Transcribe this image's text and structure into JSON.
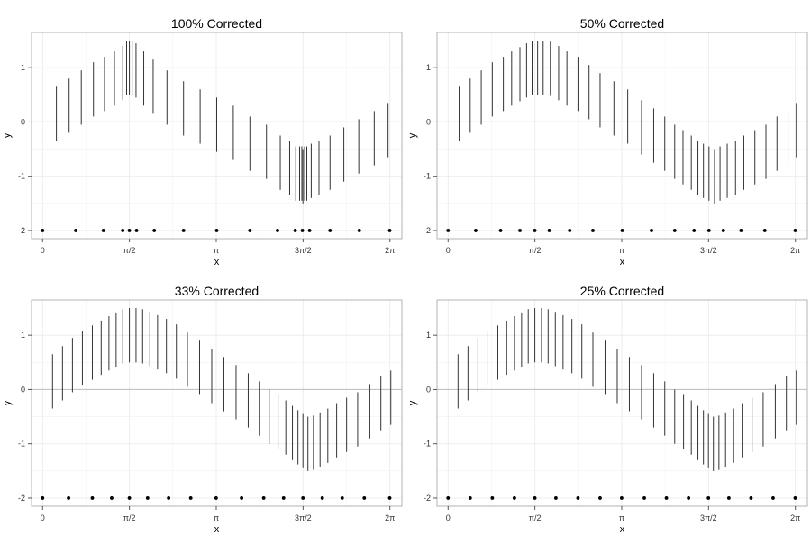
{
  "chart_data": [
    {
      "type": "segment",
      "title": "100% Corrected",
      "xlabel": "x",
      "ylabel": "y",
      "xlim": [
        -0.2,
        6.5
      ],
      "ylim": [
        -2.15,
        1.65
      ],
      "x_ticks": [
        "0",
        "π/2",
        "π",
        "3π/2",
        "2π"
      ],
      "y_ticks": [
        "-2",
        "-1",
        "0",
        "1"
      ],
      "x_tick_values": [
        0,
        1.5708,
        3.1416,
        4.7124,
        6.2832
      ],
      "y_tick_values": [
        -2,
        -1,
        0,
        1
      ],
      "baseline": -2,
      "x": [
        0.25,
        0.48,
        0.7,
        0.92,
        1.12,
        1.3,
        1.45,
        1.52,
        1.57,
        1.62,
        1.69,
        1.83,
        2.0,
        2.25,
        2.55,
        2.85,
        3.15,
        3.45,
        3.75,
        4.05,
        4.3,
        4.47,
        4.58,
        4.65,
        4.69,
        4.71,
        4.74,
        4.78,
        4.86,
        5.0,
        5.2,
        5.45,
        5.72,
        6.0,
        6.25
      ],
      "lower": [
        -0.35,
        -0.2,
        -0.05,
        0.1,
        0.2,
        0.3,
        0.4,
        0.5,
        0.5,
        0.5,
        0.45,
        0.3,
        0.15,
        -0.05,
        -0.25,
        -0.4,
        -0.55,
        -0.7,
        -0.9,
        -1.05,
        -1.25,
        -1.35,
        -1.45,
        -1.45,
        -1.45,
        -1.5,
        -1.45,
        -1.45,
        -1.4,
        -1.35,
        -1.25,
        -1.1,
        -0.95,
        -0.8,
        -0.65
      ],
      "upper": [
        0.65,
        0.8,
        0.95,
        1.1,
        1.2,
        1.3,
        1.4,
        1.5,
        1.5,
        1.5,
        1.45,
        1.3,
        1.15,
        0.95,
        0.75,
        0.6,
        0.45,
        0.3,
        0.1,
        -0.05,
        -0.25,
        -0.35,
        -0.45,
        -0.45,
        -0.45,
        -0.5,
        -0.45,
        -0.45,
        -0.4,
        -0.35,
        -0.25,
        -0.1,
        0.05,
        0.2,
        0.35
      ],
      "rug_x": [
        0.0,
        0.6,
        1.1,
        1.45,
        1.57,
        1.7,
        2.02,
        2.55,
        3.15,
        3.75,
        4.25,
        4.57,
        4.7,
        4.83,
        5.2,
        5.73,
        6.28
      ]
    },
    {
      "type": "segment",
      "title": "50% Corrected",
      "xlabel": "x",
      "ylabel": "y",
      "xlim": [
        -0.2,
        6.5
      ],
      "ylim": [
        -2.15,
        1.65
      ],
      "x_ticks": [
        "0",
        "π/2",
        "π",
        "3π/2",
        "2π"
      ],
      "y_ticks": [
        "-2",
        "-1",
        "0",
        "1"
      ],
      "x_tick_values": [
        0,
        1.5708,
        3.1416,
        4.7124,
        6.2832
      ],
      "y_tick_values": [
        -2,
        -1,
        0,
        1
      ],
      "baseline": -2,
      "x": [
        0.2,
        0.4,
        0.6,
        0.8,
        1.0,
        1.15,
        1.3,
        1.42,
        1.52,
        1.62,
        1.72,
        1.85,
        2.0,
        2.15,
        2.35,
        2.55,
        2.75,
        3.0,
        3.25,
        3.5,
        3.72,
        3.92,
        4.1,
        4.25,
        4.4,
        4.52,
        4.62,
        4.72,
        4.82,
        4.92,
        5.05,
        5.2,
        5.35,
        5.55,
        5.75,
        5.95,
        6.15,
        6.3
      ],
      "lower": [
        -0.35,
        -0.2,
        -0.05,
        0.1,
        0.2,
        0.3,
        0.38,
        0.45,
        0.5,
        0.5,
        0.5,
        0.48,
        0.4,
        0.3,
        0.2,
        0.05,
        -0.1,
        -0.25,
        -0.4,
        -0.6,
        -0.75,
        -0.9,
        -1.05,
        -1.15,
        -1.25,
        -1.35,
        -1.4,
        -1.45,
        -1.5,
        -1.45,
        -1.4,
        -1.35,
        -1.25,
        -1.15,
        -1.05,
        -0.9,
        -0.8,
        -0.65
      ],
      "upper": [
        0.65,
        0.8,
        0.95,
        1.1,
        1.2,
        1.3,
        1.38,
        1.45,
        1.5,
        1.5,
        1.5,
        1.48,
        1.4,
        1.3,
        1.2,
        1.05,
        0.9,
        0.75,
        0.6,
        0.4,
        0.25,
        0.1,
        -0.05,
        -0.15,
        -0.25,
        -0.35,
        -0.4,
        -0.45,
        -0.5,
        -0.45,
        -0.4,
        -0.35,
        -0.25,
        -0.15,
        -0.05,
        0.1,
        0.2,
        0.35
      ],
      "rug_x": [
        0.0,
        0.5,
        0.95,
        1.3,
        1.57,
        1.83,
        2.2,
        2.62,
        3.15,
        3.68,
        4.1,
        4.45,
        4.72,
        4.98,
        5.3,
        5.73,
        6.28
      ]
    },
    {
      "type": "segment",
      "title": "33% Corrected",
      "xlabel": "x",
      "ylabel": "y",
      "xlim": [
        -0.2,
        6.5
      ],
      "ylim": [
        -2.15,
        1.65
      ],
      "x_ticks": [
        "0",
        "π/2",
        "π",
        "3π/2",
        "2π"
      ],
      "y_ticks": [
        "-2",
        "-1",
        "0",
        "1"
      ],
      "x_tick_values": [
        0,
        1.5708,
        3.1416,
        4.7124,
        6.2832
      ],
      "y_tick_values": [
        -2,
        -1,
        0,
        1
      ],
      "baseline": -2,
      "x": [
        0.18,
        0.36,
        0.54,
        0.72,
        0.9,
        1.06,
        1.2,
        1.33,
        1.45,
        1.57,
        1.69,
        1.81,
        1.94,
        2.08,
        2.24,
        2.42,
        2.62,
        2.84,
        3.06,
        3.28,
        3.5,
        3.72,
        3.92,
        4.1,
        4.26,
        4.4,
        4.52,
        4.62,
        4.71,
        4.8,
        4.9,
        5.02,
        5.16,
        5.32,
        5.5,
        5.7,
        5.92,
        6.12,
        6.3
      ],
      "lower": [
        -0.35,
        -0.2,
        -0.05,
        0.08,
        0.18,
        0.27,
        0.35,
        0.42,
        0.48,
        0.5,
        0.5,
        0.48,
        0.43,
        0.37,
        0.3,
        0.2,
        0.05,
        -0.1,
        -0.25,
        -0.4,
        -0.55,
        -0.7,
        -0.85,
        -1.0,
        -1.1,
        -1.2,
        -1.3,
        -1.38,
        -1.45,
        -1.5,
        -1.48,
        -1.42,
        -1.35,
        -1.25,
        -1.15,
        -1.05,
        -0.9,
        -0.75,
        -0.65
      ],
      "upper": [
        0.65,
        0.8,
        0.95,
        1.08,
        1.18,
        1.27,
        1.35,
        1.42,
        1.48,
        1.5,
        1.5,
        1.48,
        1.43,
        1.37,
        1.3,
        1.2,
        1.05,
        0.9,
        0.75,
        0.6,
        0.45,
        0.3,
        0.15,
        0.0,
        -0.1,
        -0.2,
        -0.3,
        -0.38,
        -0.45,
        -0.5,
        -0.48,
        -0.42,
        -0.35,
        -0.25,
        -0.15,
        -0.05,
        0.1,
        0.25,
        0.35
      ],
      "rug_x": [
        0.0,
        0.47,
        0.9,
        1.25,
        1.57,
        1.9,
        2.28,
        2.68,
        3.14,
        3.6,
        4.0,
        4.36,
        4.71,
        5.06,
        5.42,
        5.82,
        6.28
      ]
    },
    {
      "type": "segment",
      "title": "25% Corrected",
      "xlabel": "x",
      "ylabel": "y",
      "xlim": [
        -0.2,
        6.5
      ],
      "ylim": [
        -2.15,
        1.65
      ],
      "x_ticks": [
        "0",
        "π/2",
        "π",
        "3π/2",
        "2π"
      ],
      "y_ticks": [
        "-2",
        "-1",
        "0",
        "1"
      ],
      "x_tick_values": [
        0,
        1.5708,
        3.1416,
        4.7124,
        6.2832
      ],
      "y_tick_values": [
        -2,
        -1,
        0,
        1
      ],
      "baseline": -2,
      "x": [
        0.18,
        0.36,
        0.54,
        0.72,
        0.9,
        1.06,
        1.2,
        1.33,
        1.45,
        1.57,
        1.69,
        1.81,
        1.94,
        2.08,
        2.24,
        2.42,
        2.62,
        2.84,
        3.06,
        3.28,
        3.5,
        3.72,
        3.92,
        4.1,
        4.26,
        4.4,
        4.52,
        4.62,
        4.71,
        4.8,
        4.9,
        5.02,
        5.16,
        5.32,
        5.5,
        5.7,
        5.92,
        6.12,
        6.3
      ],
      "lower": [
        -0.35,
        -0.2,
        -0.05,
        0.08,
        0.18,
        0.27,
        0.35,
        0.42,
        0.48,
        0.5,
        0.5,
        0.48,
        0.43,
        0.37,
        0.3,
        0.2,
        0.05,
        -0.1,
        -0.25,
        -0.4,
        -0.55,
        -0.7,
        -0.85,
        -1.0,
        -1.1,
        -1.2,
        -1.3,
        -1.38,
        -1.45,
        -1.5,
        -1.48,
        -1.42,
        -1.35,
        -1.25,
        -1.15,
        -1.05,
        -0.9,
        -0.75,
        -0.65
      ],
      "upper": [
        0.65,
        0.8,
        0.95,
        1.08,
        1.18,
        1.27,
        1.35,
        1.42,
        1.48,
        1.5,
        1.5,
        1.48,
        1.43,
        1.37,
        1.3,
        1.2,
        1.05,
        0.9,
        0.75,
        0.6,
        0.45,
        0.3,
        0.15,
        0.0,
        -0.1,
        -0.2,
        -0.3,
        -0.38,
        -0.45,
        -0.5,
        -0.48,
        -0.42,
        -0.35,
        -0.25,
        -0.15,
        -0.05,
        0.1,
        0.25,
        0.35
      ],
      "rug_x": [
        0.0,
        0.4,
        0.8,
        1.2,
        1.57,
        1.95,
        2.35,
        2.75,
        3.14,
        3.55,
        3.95,
        4.35,
        4.71,
        5.08,
        5.48,
        5.88,
        6.28
      ]
    }
  ]
}
